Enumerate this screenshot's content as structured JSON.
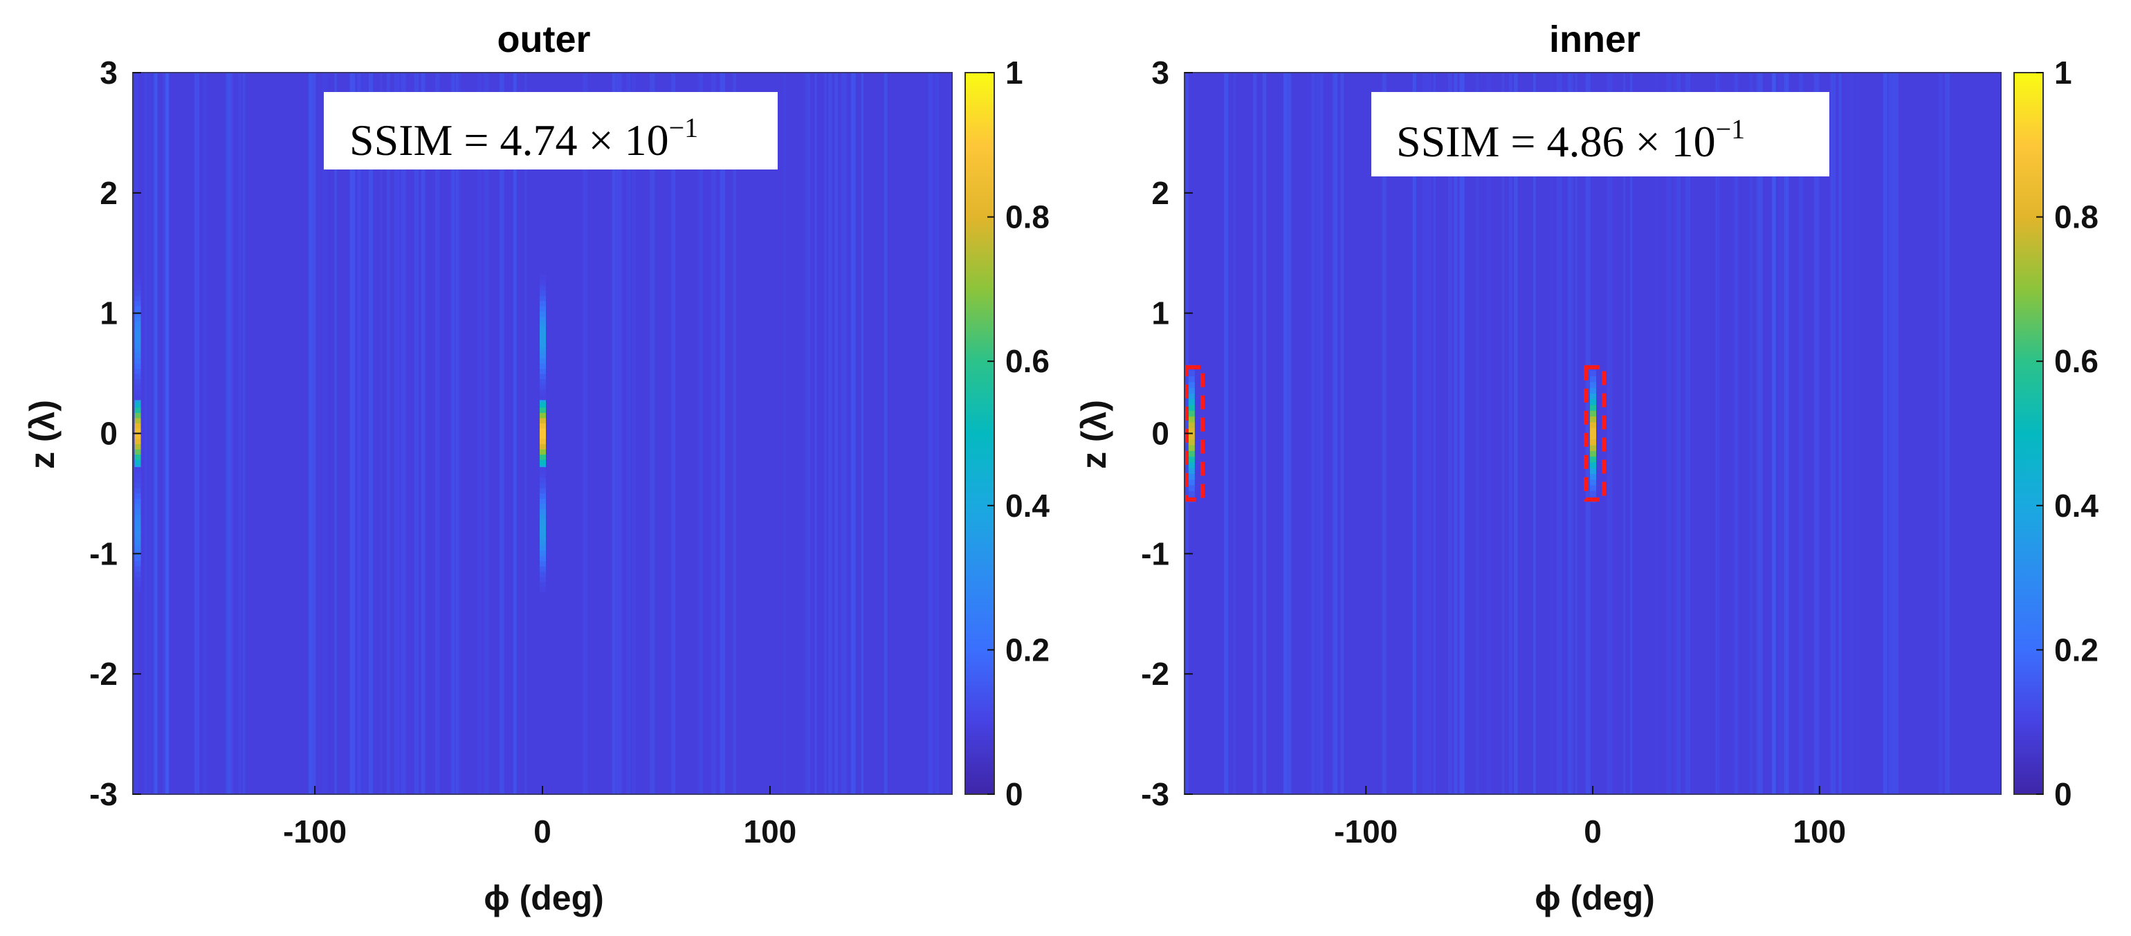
{
  "chart_data": [
    {
      "type": "heatmap",
      "title": "outer",
      "xlabel": "ϕ (deg)",
      "ylabel": "z (λ)",
      "xlim": [
        -180,
        180
      ],
      "ylim": [
        -3,
        3
      ],
      "xticks": [
        -100,
        0,
        100
      ],
      "yticks": [
        3,
        2,
        1,
        0,
        -1,
        -2,
        -3
      ],
      "colorbar": {
        "range": [
          0,
          1
        ],
        "ticks": [
          1,
          0.8,
          0.6,
          0.4,
          0.2,
          0
        ]
      },
      "annotation": {
        "prefix": "SSIM = 4.74 × 10",
        "exponent": "−1"
      },
      "hotspots": [
        {
          "phi": -178,
          "z": 0,
          "peak": 0.85,
          "sigma_z": 0.2
        },
        {
          "phi": 0,
          "z": 0,
          "peak": 0.9,
          "sigma_z": 0.2
        },
        {
          "phi": 0,
          "z": 0.8,
          "peak": 0.35,
          "sigma_z": 0.2
        },
        {
          "phi": 0,
          "z": -0.8,
          "peak": 0.35,
          "sigma_z": 0.2
        },
        {
          "phi": -178,
          "z": 0.8,
          "peak": 0.3,
          "sigma_z": 0.2
        },
        {
          "phi": -178,
          "z": -0.8,
          "peak": 0.3,
          "sigma_z": 0.2
        }
      ],
      "highlight_boxes": []
    },
    {
      "type": "heatmap",
      "title": "inner",
      "xlabel": "ϕ (deg)",
      "ylabel": "z (λ)",
      "xlim": [
        -180,
        180
      ],
      "ylim": [
        -3,
        3
      ],
      "xticks": [
        -100,
        0,
        100
      ],
      "yticks": [
        3,
        2,
        1,
        0,
        -1,
        -2,
        -3
      ],
      "colorbar": {
        "range": [
          0,
          1
        ],
        "ticks": [
          1,
          0.8,
          0.6,
          0.4,
          0.2,
          0
        ]
      },
      "annotation": {
        "prefix": "SSIM = 4.86 × 10",
        "exponent": "−1"
      },
      "hotspots": [
        {
          "phi": -177,
          "z": 0,
          "peak": 0.8,
          "sigma_z": 0.22
        },
        {
          "phi": 0,
          "z": 0,
          "peak": 0.85,
          "sigma_z": 0.22
        }
      ],
      "highlight_boxes": [
        {
          "phi_min": -180,
          "phi_max": -172,
          "z_min": -0.55,
          "z_max": 0.55
        },
        {
          "phi_min": -3,
          "phi_max": 5,
          "z_min": -0.55,
          "z_max": 0.55
        }
      ]
    }
  ]
}
